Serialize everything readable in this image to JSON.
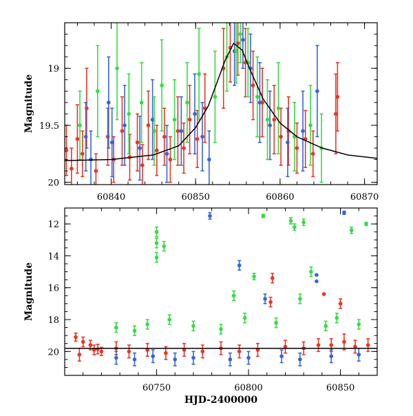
{
  "chart_data": [
    {
      "type": "scatter",
      "panel": "top",
      "title": "",
      "xlabel": "",
      "ylabel": "Magnitude",
      "xlim": [
        60834.5,
        60871.5
      ],
      "ylim": [
        20.02,
        18.6
      ],
      "y_inverted": true,
      "x_ticks": [
        60840,
        60850,
        60860,
        60870
      ],
      "x_tick_labels": [
        "60840",
        "60850",
        "60860",
        "60870"
      ],
      "y_ticks": [
        19,
        19.5,
        20
      ],
      "y_tick_labels": [
        "19",
        "19.5",
        "20"
      ],
      "grid": false,
      "legend": "none",
      "series": [
        {
          "color": "#ee3322",
          "points": [
            {
              "x": 60834.7,
              "y": 19.72,
              "err": 0.22
            },
            {
              "x": 60835.3,
              "y": 19.88,
              "err": 0.18
            },
            {
              "x": 60836.0,
              "y": 19.62,
              "err": 0.3
            },
            {
              "x": 60836.6,
              "y": 19.75,
              "err": 0.2
            },
            {
              "x": 60837.1,
              "y": 19.35,
              "err": 0.35
            },
            {
              "x": 60838.2,
              "y": 19.9,
              "err": 0.15
            },
            {
              "x": 60839.6,
              "y": 19.6,
              "err": 0.25
            },
            {
              "x": 60840.3,
              "y": 19.8,
              "err": 0.2
            },
            {
              "x": 60841.3,
              "y": 19.55,
              "err": 0.3
            },
            {
              "x": 60842.2,
              "y": 19.78,
              "err": 0.2
            },
            {
              "x": 60843.1,
              "y": 19.65,
              "err": 0.25
            },
            {
              "x": 60843.7,
              "y": 19.85,
              "err": 0.18
            },
            {
              "x": 60844.4,
              "y": 19.5,
              "err": 0.3
            },
            {
              "x": 60845.4,
              "y": 19.72,
              "err": 0.22
            },
            {
              "x": 60846.3,
              "y": 19.6,
              "err": 0.25
            },
            {
              "x": 60847.0,
              "y": 19.8,
              "err": 0.2
            },
            {
              "x": 60847.9,
              "y": 19.55,
              "err": 0.3
            },
            {
              "x": 60848.6,
              "y": 19.7,
              "err": 0.22
            },
            {
              "x": 60849.3,
              "y": 19.45,
              "err": 0.3
            },
            {
              "x": 60850.2,
              "y": 19.62,
              "err": 0.25
            },
            {
              "x": 60851.1,
              "y": 19.35,
              "err": 0.3
            },
            {
              "x": 60853.3,
              "y": 19.0,
              "err": 0.35
            },
            {
              "x": 60854.1,
              "y": 18.82,
              "err": 0.3
            },
            {
              "x": 60855.0,
              "y": 18.78,
              "err": 0.28
            },
            {
              "x": 60855.9,
              "y": 18.95,
              "err": 0.3
            },
            {
              "x": 60856.8,
              "y": 19.15,
              "err": 0.3
            },
            {
              "x": 60857.9,
              "y": 19.3,
              "err": 0.3
            },
            {
              "x": 60859.3,
              "y": 19.45,
              "err": 0.3
            },
            {
              "x": 60860.1,
              "y": 19.6,
              "err": 0.25
            },
            {
              "x": 60861.0,
              "y": 19.55,
              "err": 0.3
            },
            {
              "x": 60862.0,
              "y": 19.7,
              "err": 0.22
            },
            {
              "x": 60863.0,
              "y": 19.62,
              "err": 0.25
            },
            {
              "x": 60863.9,
              "y": 19.75,
              "err": 0.2
            },
            {
              "x": 60866.6,
              "y": 19.4,
              "err": 0.35
            },
            {
              "x": 60866.8,
              "y": 19.25,
              "err": 0.3
            }
          ]
        },
        {
          "color": "#3366dd",
          "points": [
            {
              "x": 60837.0,
              "y": 19.6,
              "err": 0.3
            },
            {
              "x": 60837.6,
              "y": 19.8,
              "err": 0.25
            },
            {
              "x": 60839.7,
              "y": 19.3,
              "err": 0.4
            },
            {
              "x": 60840.1,
              "y": 19.65,
              "err": 0.3
            },
            {
              "x": 60841.6,
              "y": 19.5,
              "err": 0.35
            },
            {
              "x": 60843.4,
              "y": 19.7,
              "err": 0.28
            },
            {
              "x": 60844.9,
              "y": 19.45,
              "err": 0.35
            },
            {
              "x": 60846.6,
              "y": 19.75,
              "err": 0.25
            },
            {
              "x": 60848.3,
              "y": 19.55,
              "err": 0.3
            },
            {
              "x": 60849.9,
              "y": 19.4,
              "err": 0.35
            },
            {
              "x": 60850.8,
              "y": 19.6,
              "err": 0.3
            },
            {
              "x": 60851.6,
              "y": 19.8,
              "err": 0.25
            },
            {
              "x": 60854.6,
              "y": 18.85,
              "err": 0.3
            },
            {
              "x": 60855.6,
              "y": 18.75,
              "err": 0.25
            },
            {
              "x": 60856.5,
              "y": 19.0,
              "err": 0.3
            },
            {
              "x": 60857.6,
              "y": 19.3,
              "err": 0.35
            },
            {
              "x": 60858.8,
              "y": 19.5,
              "err": 0.3
            },
            {
              "x": 60860.9,
              "y": 19.65,
              "err": 0.3
            },
            {
              "x": 60862.7,
              "y": 19.55,
              "err": 0.35
            },
            {
              "x": 60864.4,
              "y": 19.2,
              "err": 0.4
            }
          ]
        },
        {
          "color": "#33dd44",
          "points": [
            {
              "x": 60836.3,
              "y": 19.5,
              "err": 0.3
            },
            {
              "x": 60838.4,
              "y": 19.2,
              "err": 0.4
            },
            {
              "x": 60840.7,
              "y": 19.0,
              "err": 0.45
            },
            {
              "x": 60842.1,
              "y": 19.4,
              "err": 0.35
            },
            {
              "x": 60843.6,
              "y": 19.3,
              "err": 0.35
            },
            {
              "x": 60845.1,
              "y": 19.55,
              "err": 0.3
            },
            {
              "x": 60846.0,
              "y": 19.15,
              "err": 0.4
            },
            {
              "x": 60847.5,
              "y": 19.45,
              "err": 0.35
            },
            {
              "x": 60849.0,
              "y": 19.3,
              "err": 0.35
            },
            {
              "x": 60850.4,
              "y": 19.05,
              "err": 0.4
            },
            {
              "x": 60852.3,
              "y": 19.25,
              "err": 0.4
            },
            {
              "x": 60853.7,
              "y": 18.9,
              "err": 0.3
            },
            {
              "x": 60854.8,
              "y": 18.85,
              "err": 0.28
            },
            {
              "x": 60855.3,
              "y": 18.7,
              "err": 0.25
            },
            {
              "x": 60856.2,
              "y": 18.95,
              "err": 0.3
            },
            {
              "x": 60857.3,
              "y": 19.25,
              "err": 0.35
            },
            {
              "x": 60858.5,
              "y": 19.45,
              "err": 0.35
            },
            {
              "x": 60859.8,
              "y": 19.35,
              "err": 0.4
            },
            {
              "x": 60861.7,
              "y": 19.6,
              "err": 0.3
            },
            {
              "x": 60863.6,
              "y": 19.5,
              "err": 0.35
            },
            {
              "x": 60864.9,
              "y": 19.7,
              "err": 0.3
            }
          ]
        }
      ],
      "model_curve": {
        "color": "#000000",
        "x": [
          60834.5,
          60840,
          60845,
          60848,
          60850,
          60851.5,
          60852.5,
          60853.5,
          60854.5,
          60855.5,
          60856.5,
          60858,
          60860,
          60862,
          60865,
          60868,
          60871.5
        ],
        "y": [
          19.81,
          19.8,
          19.76,
          19.68,
          19.52,
          19.33,
          19.13,
          18.93,
          18.78,
          18.84,
          19.02,
          19.27,
          19.48,
          19.6,
          19.7,
          19.76,
          19.79
        ]
      }
    },
    {
      "type": "scatter",
      "panel": "bottom",
      "title": "",
      "xlabel": "HJD-2400000",
      "ylabel": "Magnitude",
      "xlim": [
        60700,
        60870
      ],
      "ylim": [
        21.5,
        11.0
      ],
      "y_inverted": true,
      "x_ticks": [
        60750,
        60800,
        60850
      ],
      "x_tick_labels": [
        "60750",
        "60800",
        "60850"
      ],
      "y_ticks": [
        12,
        14,
        16,
        18,
        20
      ],
      "y_tick_labels": [
        "12",
        "14",
        "16",
        "18",
        "20"
      ],
      "grid": false,
      "legend": "none",
      "series": [
        {
          "color": "#ee3322",
          "points": [
            {
              "x": 60706,
              "y": 19.1,
              "err": 0.25
            },
            {
              "x": 60708,
              "y": 20.2,
              "err": 0.4
            },
            {
              "x": 60710,
              "y": 19.4,
              "err": 0.3
            },
            {
              "x": 60714,
              "y": 19.6,
              "err": 0.3
            },
            {
              "x": 60716,
              "y": 19.9,
              "err": 0.3
            },
            {
              "x": 60718,
              "y": 19.85,
              "err": 0.3
            },
            {
              "x": 60720,
              "y": 20.0,
              "err": 0.25
            },
            {
              "x": 60728,
              "y": 19.8,
              "err": 0.4
            },
            {
              "x": 60735,
              "y": 20.0,
              "err": 0.4
            },
            {
              "x": 60745,
              "y": 19.9,
              "err": 0.4
            },
            {
              "x": 60755,
              "y": 20.1,
              "err": 0.4
            },
            {
              "x": 60765,
              "y": 19.9,
              "err": 0.4
            },
            {
              "x": 60775,
              "y": 20.0,
              "err": 0.4
            },
            {
              "x": 60785,
              "y": 19.8,
              "err": 0.4
            },
            {
              "x": 60795,
              "y": 20.0,
              "err": 0.4
            },
            {
              "x": 60805,
              "y": 19.9,
              "err": 0.4
            },
            {
              "x": 60813,
              "y": 15.4,
              "err": 0.3
            },
            {
              "x": 60812,
              "y": 16.9,
              "err": 0.3
            },
            {
              "x": 60820,
              "y": 19.7,
              "err": 0.4
            },
            {
              "x": 60830,
              "y": 19.8,
              "err": 0.4
            },
            {
              "x": 60838,
              "y": 19.6,
              "err": 0.4
            },
            {
              "x": 60841,
              "y": 16.4,
              "err": 0.0
            },
            {
              "x": 60845,
              "y": 19.6,
              "err": 0.4
            },
            {
              "x": 60850,
              "y": 17.0,
              "err": 0.3
            },
            {
              "x": 60852,
              "y": 19.4,
              "err": 0.5
            },
            {
              "x": 60858,
              "y": 19.7,
              "err": 0.4
            },
            {
              "x": 60865,
              "y": 19.6,
              "err": 0.4
            }
          ]
        },
        {
          "color": "#3366dd",
          "points": [
            {
              "x": 60728,
              "y": 20.4,
              "err": 0.4
            },
            {
              "x": 60738,
              "y": 20.5,
              "err": 0.4
            },
            {
              "x": 60748,
              "y": 20.3,
              "err": 0.4
            },
            {
              "x": 60760,
              "y": 20.5,
              "err": 0.4
            },
            {
              "x": 60770,
              "y": 20.4,
              "err": 0.4
            },
            {
              "x": 60779,
              "y": 11.5,
              "err": 0.2
            },
            {
              "x": 60790,
              "y": 20.5,
              "err": 0.4
            },
            {
              "x": 60795,
              "y": 14.6,
              "err": 0.3
            },
            {
              "x": 60800,
              "y": 20.4,
              "err": 0.4
            },
            {
              "x": 60809,
              "y": 16.7,
              "err": 0.3
            },
            {
              "x": 60818,
              "y": 20.3,
              "err": 0.4
            },
            {
              "x": 60828,
              "y": 20.5,
              "err": 0.4
            },
            {
              "x": 60837,
              "y": 15.2,
              "err": 0.0
            },
            {
              "x": 60837,
              "y": 15.6,
              "err": 0.0
            },
            {
              "x": 60845,
              "y": 20.3,
              "err": 0.4
            },
            {
              "x": 60852,
              "y": 11.3,
              "err": 0.1
            },
            {
              "x": 60860,
              "y": 20.2,
              "err": 0.4
            }
          ]
        },
        {
          "color": "#33dd44",
          "points": [
            {
              "x": 60728,
              "y": 18.5,
              "err": 0.3
            },
            {
              "x": 60738,
              "y": 18.7,
              "err": 0.3
            },
            {
              "x": 60745,
              "y": 18.3,
              "err": 0.3
            },
            {
              "x": 60750,
              "y": 12.5,
              "err": 0.3
            },
            {
              "x": 60750,
              "y": 13.2,
              "err": 0.3
            },
            {
              "x": 60750,
              "y": 14.1,
              "err": 0.3
            },
            {
              "x": 60754,
              "y": 13.4,
              "err": 0.3
            },
            {
              "x": 60757,
              "y": 18.0,
              "err": 0.3
            },
            {
              "x": 60770,
              "y": 18.4,
              "err": 0.3
            },
            {
              "x": 60785,
              "y": 18.6,
              "err": 0.3
            },
            {
              "x": 60792,
              "y": 16.5,
              "err": 0.3
            },
            {
              "x": 60798,
              "y": 17.9,
              "err": 0.3
            },
            {
              "x": 60803,
              "y": 15.3,
              "err": 0.2
            },
            {
              "x": 60808,
              "y": 11.5,
              "err": 0.1
            },
            {
              "x": 60815,
              "y": 18.2,
              "err": 0.3
            },
            {
              "x": 60823,
              "y": 11.8,
              "err": 0.2
            },
            {
              "x": 60825,
              "y": 12.2,
              "err": 0.2
            },
            {
              "x": 60828,
              "y": 16.7,
              "err": 0.3
            },
            {
              "x": 60830,
              "y": 11.9,
              "err": 0.2
            },
            {
              "x": 60834,
              "y": 15.0,
              "err": 0.3
            },
            {
              "x": 60842,
              "y": 18.4,
              "err": 0.3
            },
            {
              "x": 60848,
              "y": 17.9,
              "err": 0.3
            },
            {
              "x": 60856,
              "y": 12.4,
              "err": 0.2
            },
            {
              "x": 60860,
              "y": 18.3,
              "err": 0.3
            },
            {
              "x": 60864,
              "y": 12.0,
              "err": 0.1
            }
          ]
        }
      ],
      "model_curve": {
        "color": "#000000",
        "x": [
          60700,
          60870
        ],
        "y": [
          19.8,
          19.8
        ]
      }
    }
  ]
}
